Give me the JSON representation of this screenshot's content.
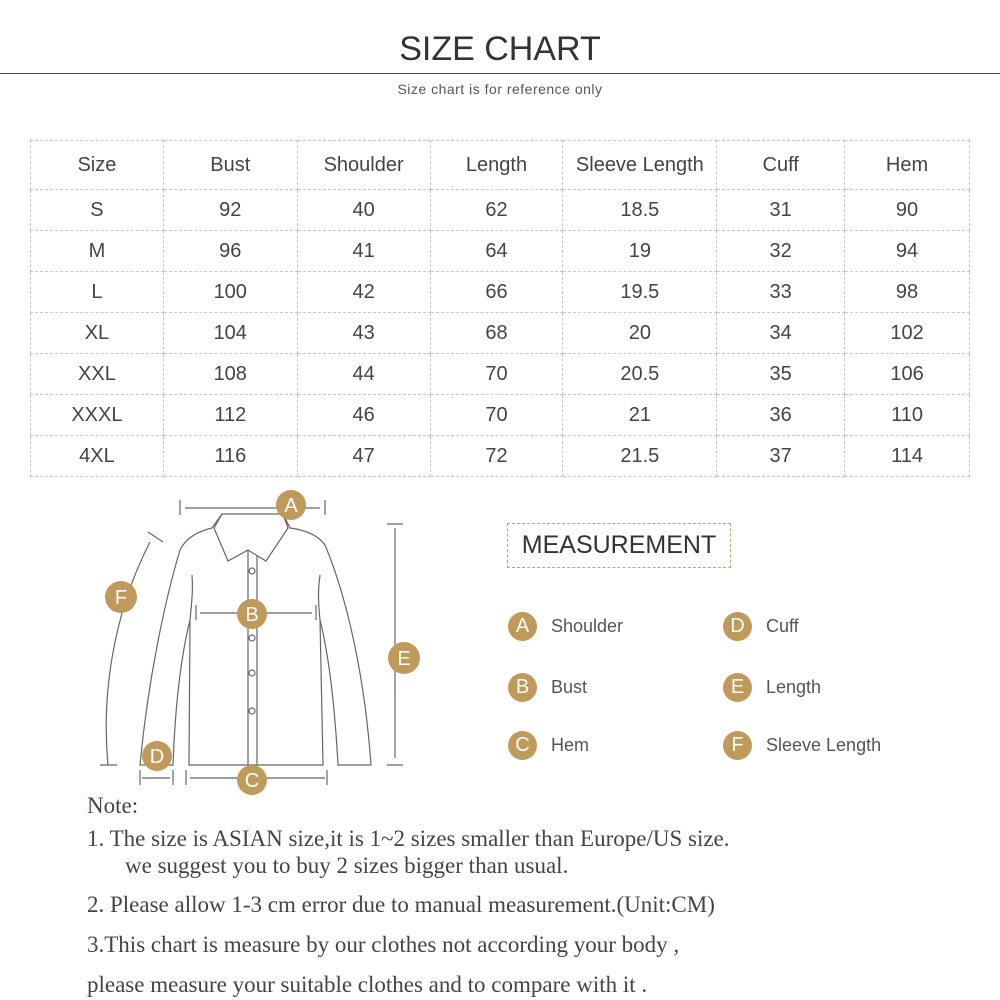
{
  "header": {
    "title": "SIZE CHART",
    "subtitle": "Size chart is for reference only"
  },
  "table": {
    "columns": [
      "Size",
      "Bust",
      "Shoulder",
      "Length",
      "Sleeve Length",
      "Cuff",
      "Hem"
    ],
    "rows": [
      [
        "S",
        "92",
        "40",
        "62",
        "18.5",
        "31",
        "90"
      ],
      [
        "M",
        "96",
        "41",
        "64",
        "19",
        "32",
        "94"
      ],
      [
        "L",
        "100",
        "42",
        "66",
        "19.5",
        "33",
        "98"
      ],
      [
        "XL",
        "104",
        "43",
        "68",
        "20",
        "34",
        "102"
      ],
      [
        "XXL",
        "108",
        "44",
        "70",
        "20.5",
        "35",
        "106"
      ],
      [
        "XXXL",
        "112",
        "46",
        "70",
        "21",
        "36",
        "110"
      ],
      [
        "4XL",
        "116",
        "47",
        "72",
        "21.5",
        "37",
        "114"
      ]
    ]
  },
  "measurement": {
    "title": "MEASUREMENT",
    "accent": "#bf9a5a",
    "legend": [
      {
        "letter": "A",
        "label": "Shoulder"
      },
      {
        "letter": "B",
        "label": "Bust"
      },
      {
        "letter": "C",
        "label": "Hem"
      },
      {
        "letter": "D",
        "label": "Cuff"
      },
      {
        "letter": "E",
        "label": "Length"
      },
      {
        "letter": "F",
        "label": "Sleeve Length"
      }
    ],
    "diagram_labels": {
      "a": "A",
      "b": "B",
      "c": "C",
      "d": "D",
      "e": "E",
      "f": "F"
    }
  },
  "notes": {
    "heading": "Note:",
    "n1a": "1.  The size is ASIAN size,it is 1~2 sizes smaller than Europe/US size.",
    "n1b": "we suggest you to buy 2 sizes bigger than usual.",
    "n2": "2.  Please allow 1-3 cm error due to manual measurement.(Unit:CM)",
    "n3a": "3.This chart is measure by our clothes not according your body ,",
    "n3b": "please measure your suitable clothes and to compare with it ."
  }
}
